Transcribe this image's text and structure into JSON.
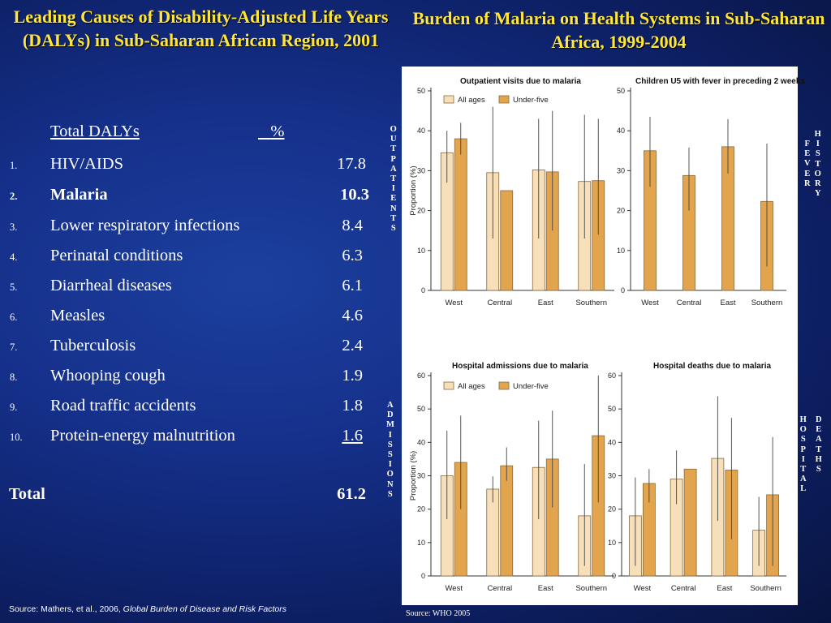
{
  "left": {
    "title": "Leading Causes of Disability-Adjusted Life Years (DALYs) in Sub-Saharan African Region, 2001",
    "header_label": "Total DALYs",
    "header_unit": "%",
    "rows": [
      {
        "num": "1.",
        "name": "HIV/AIDS",
        "value": "17.8"
      },
      {
        "num": "2.",
        "name": "Malaria",
        "value": "10.3"
      },
      {
        "num": "3.",
        "name": "Lower respiratory infections",
        "value": "8.4"
      },
      {
        "num": "4.",
        "name": "Perinatal conditions",
        "value": "6.3"
      },
      {
        "num": "5.",
        "name": "Diarrheal diseases",
        "value": "6.1"
      },
      {
        "num": "6.",
        "name": "Measles",
        "value": "4.6"
      },
      {
        "num": "7.",
        "name": "Tuberculosis",
        "value": "2.4"
      },
      {
        "num": "8.",
        "name": "Whooping cough",
        "value": "1.9"
      },
      {
        "num": "9.",
        "name": "Road traffic accidents",
        "value": "1.8"
      },
      {
        "num": "10.",
        "name": "Protein-energy malnutrition",
        "value": "1.6"
      }
    ],
    "total_label": "Total",
    "total_value": "61.2",
    "source_prefix": "Source: Mathers, et al., 2006, ",
    "source_italic": "Global Burden of Disease and Risk Factors"
  },
  "right": {
    "title": "Burden of Malaria on Health Systems in Sub-Saharan Africa, 1999-2004",
    "source": "Source: WHO 2005",
    "side_labels": {
      "outpatients": "OUTPATIENTS",
      "fever": "FEVER",
      "history": "HISTORY",
      "admissions": "ADMISSIONS",
      "hospital": "HOSPITAL",
      "deaths": "DEATHS"
    }
  },
  "colors": {
    "all_ages": "#f6dfb9",
    "under_five": "#e2a54e",
    "bar_stroke": "#8a6a3a",
    "title_yellow": "#ffe63a"
  },
  "chart_data": [
    {
      "type": "bar",
      "title": "Outpatient visits due to malaria",
      "ylabel": "Proportion (%)",
      "ylim": [
        0,
        50
      ],
      "yticks": [
        0,
        10,
        20,
        30,
        40,
        50
      ],
      "categories": [
        "West",
        "Central",
        "East",
        "Southern"
      ],
      "legend": [
        "All ages",
        "Under-five"
      ],
      "series": [
        {
          "name": "All ages",
          "values": [
            34.5,
            29.5,
            30.2,
            27.3
          ],
          "err_low": [
            27,
            13,
            13,
            13
          ],
          "err_high": [
            40,
            46,
            43,
            44
          ]
        },
        {
          "name": "Under-five",
          "values": [
            38,
            25,
            29.7,
            27.5
          ],
          "err_low": [
            34,
            null,
            15,
            14
          ],
          "err_high": [
            42,
            null,
            45,
            43
          ]
        }
      ]
    },
    {
      "type": "bar",
      "title": "Children U5 with fever in preceding 2 weeks",
      "ylabel": "",
      "ylim": [
        0,
        50
      ],
      "yticks": [
        0,
        10,
        20,
        30,
        40,
        50
      ],
      "categories": [
        "West",
        "Central",
        "East",
        "Southern"
      ],
      "series": [
        {
          "name": "",
          "values": [
            35,
            28.8,
            36,
            22.3
          ],
          "err_low": [
            26,
            20,
            29.3,
            6
          ],
          "err_high": [
            43.5,
            35.8,
            42.9,
            36.8
          ]
        }
      ]
    },
    {
      "type": "bar",
      "title": "Hospital admissions due to malaria",
      "ylabel": "Proportion (%)",
      "ylim": [
        0,
        60
      ],
      "yticks": [
        0,
        10,
        20,
        30,
        40,
        50,
        60
      ],
      "categories": [
        "West",
        "Central",
        "East",
        "Southern"
      ],
      "legend": [
        "All ages",
        "Under-five"
      ],
      "series": [
        {
          "name": "All ages",
          "values": [
            30,
            26,
            32.5,
            18
          ],
          "err_low": [
            17,
            22,
            17,
            3
          ],
          "err_high": [
            43.5,
            29.8,
            46.5,
            33.5
          ]
        },
        {
          "name": "Under-five",
          "values": [
            34,
            33,
            35,
            42
          ],
          "err_low": [
            20,
            28.5,
            20.5,
            22
          ],
          "err_high": [
            48,
            38.5,
            49.5,
            60
          ]
        }
      ]
    },
    {
      "type": "bar",
      "title": "Hospital deaths due to malaria",
      "ylabel": "",
      "ylim": [
        0,
        60
      ],
      "yticks": [
        0,
        10,
        20,
        30,
        40,
        50,
        60
      ],
      "categories": [
        "West",
        "Central",
        "East",
        "Southern"
      ],
      "series": [
        {
          "name": "All ages",
          "values": [
            18,
            29,
            35.2,
            13.7
          ],
          "err_low": [
            3,
            21.5,
            16.5,
            3
          ],
          "err_high": [
            29.5,
            37.6,
            53.8,
            23.7
          ]
        },
        {
          "name": "Under-five",
          "values": [
            27.7,
            32,
            31.7,
            24.3
          ],
          "err_low": [
            22,
            null,
            11,
            3
          ],
          "err_high": [
            32,
            null,
            47.3,
            41.6
          ]
        }
      ]
    }
  ]
}
